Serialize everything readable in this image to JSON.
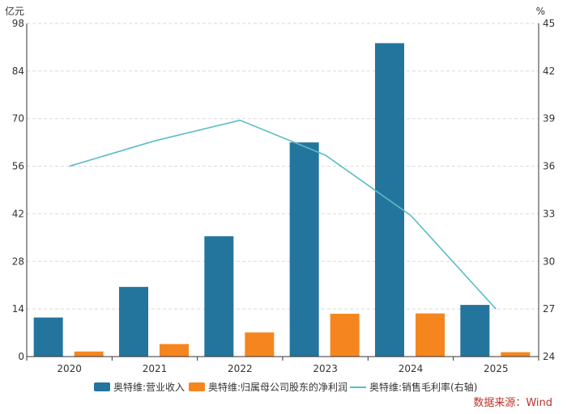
{
  "chart_data": {
    "type": "bar",
    "categories": [
      "2020",
      "2021",
      "2022",
      "2023",
      "2024",
      "2025"
    ],
    "left_axis": {
      "unit": "亿元",
      "ylim": [
        0,
        98
      ],
      "ticks": [
        0,
        14,
        28,
        42,
        56,
        70,
        84,
        98
      ]
    },
    "right_axis": {
      "unit": "%",
      "ylim": [
        24,
        45
      ],
      "ticks": [
        24,
        27,
        30,
        33,
        36,
        39,
        42,
        45
      ]
    },
    "series": [
      {
        "name": "奥特维:营业收入",
        "kind": "bar",
        "axis": "left",
        "color": "#23759e",
        "values": [
          11.5,
          20.5,
          35.4,
          63.0,
          92.2,
          15.2
        ]
      },
      {
        "name": "奥特维:归属母公司股东的净利润",
        "kind": "bar",
        "axis": "left",
        "color": "#f5861f",
        "values": [
          1.5,
          3.7,
          7.1,
          12.6,
          12.7,
          1.3
        ]
      },
      {
        "name": "奥特维:销售毛利率(右轴)",
        "kind": "line",
        "axis": "right",
        "color": "#5bbcc7",
        "values": [
          36.0,
          37.6,
          38.9,
          36.7,
          32.9,
          27.0
        ]
      }
    ],
    "grid": true,
    "legend_position": "bottom"
  },
  "source_text": "数据来源：Wind",
  "source_color": "#c0312b"
}
